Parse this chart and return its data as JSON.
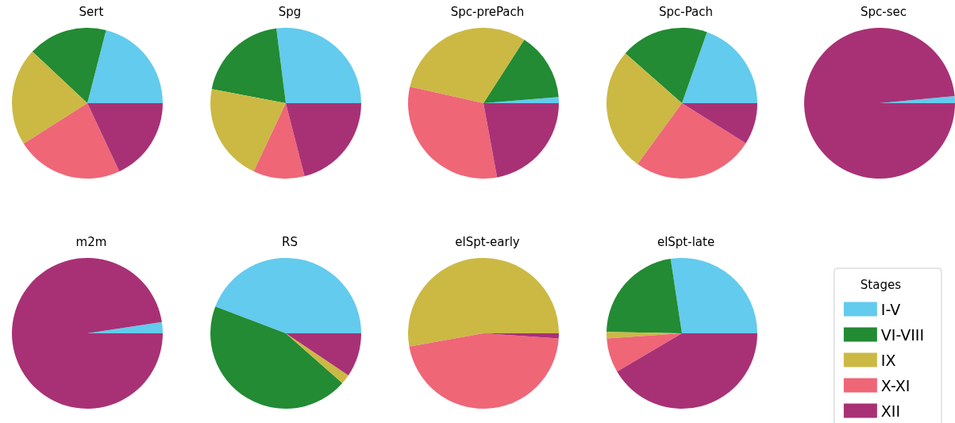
{
  "chart_data": [
    {
      "type": "pie",
      "title": "Sert",
      "categories": [
        null,
        null,
        null,
        null,
        null
      ],
      "values": [
        21,
        17,
        21,
        23,
        18
      ],
      "colors": [
        "#63cbed",
        "#228b33",
        "#cbb944",
        "#ef6677",
        "#a83175"
      ]
    },
    {
      "type": "pie",
      "title": "Spg",
      "categories": [
        null,
        null,
        null,
        null,
        null
      ],
      "values": [
        27,
        20,
        21,
        11,
        21
      ],
      "colors": [
        "#63cbed",
        "#228b33",
        "#cbb944",
        "#ef6677",
        "#a83175"
      ]
    },
    {
      "type": "pie",
      "title": "Spc-prePach",
      "categories": [
        null,
        null,
        null,
        null,
        null
      ],
      "values": [
        1.3,
        14.6,
        30.6,
        31.4,
        22.1
      ],
      "colors": [
        "#63cbed",
        "#228b33",
        "#cbb944",
        "#ef6677",
        "#a83175"
      ]
    },
    {
      "type": "pie",
      "title": "Spc-Pach",
      "categories": [
        null,
        null,
        null,
        null,
        null
      ],
      "values": [
        19.6,
        18.9,
        26.5,
        26.1,
        8.9
      ],
      "colors": [
        "#63cbed",
        "#228b33",
        "#cbb944",
        "#ef6677",
        "#a83175"
      ]
    },
    {
      "type": "pie",
      "title": "Spc-sec",
      "categories": [
        null,
        null,
        null,
        null,
        null
      ],
      "values": [
        1.5,
        0,
        0,
        0,
        98.5
      ],
      "colors": [
        "#63cbed",
        "#228b33",
        "#cbb944",
        "#ef6677",
        "#a83175"
      ]
    },
    {
      "type": "pie",
      "title": "m2m",
      "categories": [
        null,
        null,
        null,
        null,
        null
      ],
      "values": [
        2.4,
        0,
        0,
        0,
        97.6
      ],
      "colors": [
        "#63cbed",
        "#228b33",
        "#cbb944",
        "#ef6677",
        "#a83175"
      ]
    },
    {
      "type": "pie",
      "title": "RS",
      "categories": [
        null,
        null,
        null,
        null,
        null
      ],
      "values": [
        44.2,
        44.3,
        2.1,
        0,
        9.4
      ],
      "colors": [
        "#63cbed",
        "#228b33",
        "#cbb944",
        "#ef6677",
        "#a83175"
      ]
    },
    {
      "type": "pie",
      "title": "elSpt-early",
      "categories": [
        null,
        null,
        null,
        null,
        null
      ],
      "values": [
        0,
        0,
        52.8,
        46.1,
        1.1
      ],
      "colors": [
        "#63cbed",
        "#228b33",
        "#cbb944",
        "#ef6677",
        "#a83175"
      ]
    },
    {
      "type": "pie",
      "title": "elSpt-late",
      "categories": [
        "I-V",
        "VI-VIII",
        "IX",
        "X-XI",
        "XII"
      ],
      "values": [
        27.4,
        22.3,
        1.4,
        7.4,
        41.5
      ],
      "colors": [
        "#63cbed",
        "#228b33",
        "#cbb944",
        "#ef6677",
        "#a83175"
      ],
      "legend": "right",
      "legend_title": "Stages"
    }
  ]
}
